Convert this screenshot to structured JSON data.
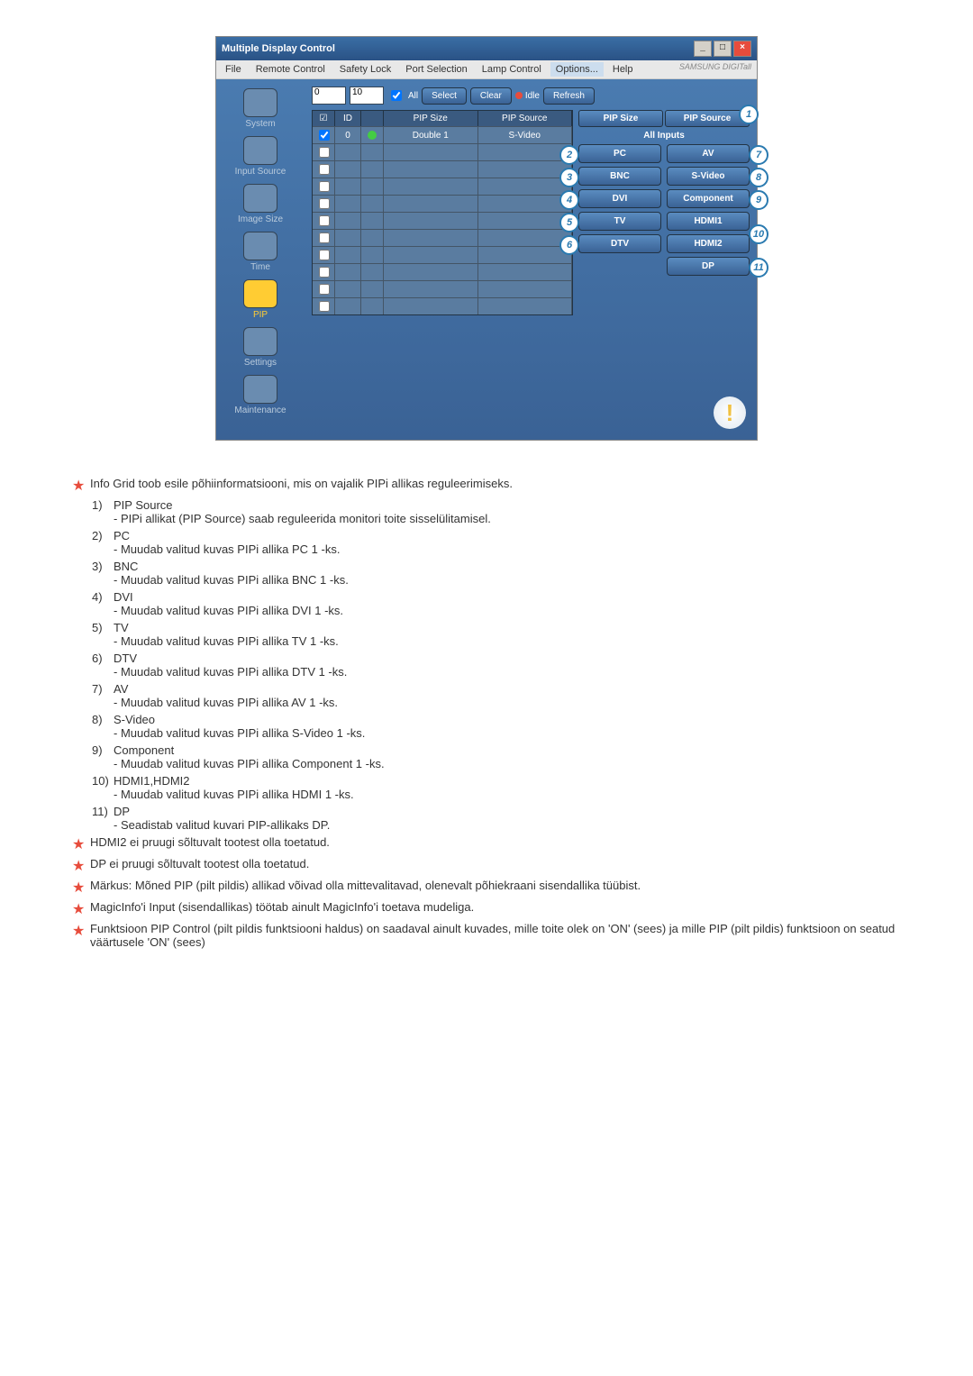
{
  "window": {
    "title": "Multiple Display Control",
    "min": "_",
    "max": "□",
    "close": "×"
  },
  "menu": {
    "file": "File",
    "remote": "Remote Control",
    "safety": "Safety Lock",
    "port": "Port Selection",
    "lamp": "Lamp Control",
    "options": "Options...",
    "help": "Help",
    "brand": "SAMSUNG DIGITall"
  },
  "sidebar": {
    "system": "System",
    "input": "Input Source",
    "image": "Image Size",
    "time": "Time",
    "pip": "PIP",
    "settings": "Settings",
    "maint": "Maintenance"
  },
  "toolbar": {
    "drop1": "0",
    "drop2": "10",
    "all": "All",
    "select": "Select",
    "clear": "Clear",
    "idle": "Idle",
    "refresh": "Refresh"
  },
  "grid": {
    "h_chk": "☑",
    "h_id": "ID",
    "h_status": "",
    "h_size": "PIP Size",
    "h_source": "PIP Source",
    "row0": {
      "id": "0",
      "size": "Double 1",
      "source": "S-Video"
    }
  },
  "panel": {
    "pipsize": "PIP Size",
    "pipsource": "PIP Source",
    "allinputs": "All Inputs",
    "pc": "PC",
    "bnc": "BNC",
    "dvi": "DVI",
    "tv": "TV",
    "dtv": "DTV",
    "av": "AV",
    "svideo": "S-Video",
    "component": "Component",
    "hdmi1": "HDMI1",
    "hdmi2": "HDMI2",
    "dp": "DP"
  },
  "badges": {
    "b1": "1",
    "b2": "2",
    "b3": "3",
    "b4": "4",
    "b5": "5",
    "b6": "6",
    "b7": "7",
    "b8": "8",
    "b9": "9",
    "b10": "10",
    "b11": "11"
  },
  "notes": {
    "intro": "Info Grid toob esile põhiinformatsiooni, mis on vajalik PIPi allikas reguleerimiseks.",
    "n1t": "PIP Source",
    "n1d": "- PIPi allikat (PIP Source) saab reguleerida monitori toite sisselülitamisel.",
    "n2t": "PC",
    "n2d": "- Muudab valitud kuvas PIPi allika PC 1 -ks.",
    "n3t": "BNC",
    "n3d": "- Muudab valitud kuvas PIPi allika BNC 1 -ks.",
    "n4t": "DVI",
    "n4d": "- Muudab valitud kuvas PIPi allika DVI 1 -ks.",
    "n5t": "TV",
    "n5d": "- Muudab valitud kuvas PIPi allika TV 1 -ks.",
    "n6t": "DTV",
    "n6d": "- Muudab valitud kuvas PIPi allika DTV 1 -ks.",
    "n7t": "AV",
    "n7d": "- Muudab valitud kuvas PIPi allika AV 1 -ks.",
    "n8t": "S-Video",
    "n8d": "- Muudab valitud kuvas PIPi allika S-Video 1 -ks.",
    "n9t": "Component",
    "n9d": "- Muudab valitud kuvas PIPi allika Component 1 -ks.",
    "n10t": "HDMI1,HDMI2",
    "n10d": "- Muudab valitud kuvas PIPi allika HDMI 1 -ks.",
    "n11t": "DP",
    "n11d": "- Seadistab valitud kuvari PIP-allikaks DP.",
    "s1": "HDMI2 ei pruugi sõltuvalt tootest olla toetatud.",
    "s2": "DP ei pruugi sõltuvalt tootest olla toetatud.",
    "s3": "Märkus: Mõned PIP (pilt pildis) allikad võivad olla mittevalitavad, olenevalt põhiekraani sisendallika tüübist.",
    "s4": "MagicInfo'i Input (sisendallikas) töötab ainult MagicInfo'i toetava mudeliga.",
    "s5": "Funktsioon PIP Control (pilt pildis funktsiooni haldus) on saadaval ainult kuvades, mille toite olek on 'ON' (sees) ja mille PIP (pilt pildis) funktsioon on seatud väärtusele 'ON' (sees)"
  },
  "nums": {
    "n1": "1)",
    "n2": "2)",
    "n3": "3)",
    "n4": "4)",
    "n5": "5)",
    "n6": "6)",
    "n7": "7)",
    "n8": "8)",
    "n9": "9)",
    "n10": "10)",
    "n11": "11)"
  }
}
